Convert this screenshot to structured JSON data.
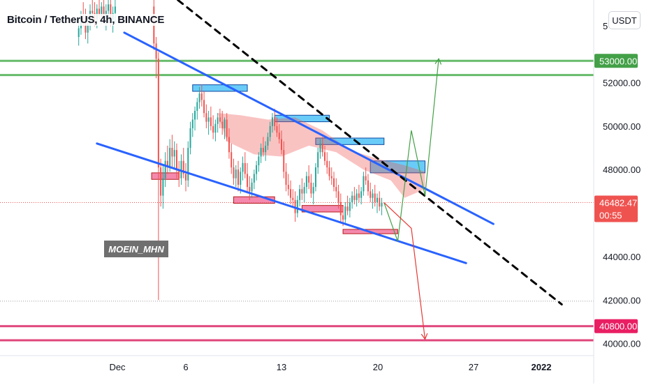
{
  "chart_data": {
    "type": "candlestick",
    "title": "Bitcoin / TetherUS, 4h, BINANCE",
    "quote_currency": "USDT",
    "y_axis": {
      "labels": [
        "52000.00",
        "50000.00",
        "48000.00",
        "44000.00",
        "42000.00",
        "40000.00"
      ],
      "partial_top_label": "5",
      "range": [
        39700,
        55800
      ]
    },
    "x_axis": {
      "labels": [
        "Dec",
        "6",
        "13",
        "20",
        "27",
        "2022"
      ],
      "range": [
        "2021-11-29",
        "2022-01-03"
      ]
    },
    "price_badges": [
      {
        "value": "53000.00",
        "color": "#43a047"
      },
      {
        "value": "46482.47",
        "countdown": "00:55",
        "color": "#ef5350"
      },
      {
        "value": "40800.00",
        "color": "#e91e63"
      }
    ],
    "current_price": 46482.47,
    "horizontal_lines": [
      {
        "price": 53000,
        "color": "#66bb6a"
      },
      {
        "price": 52350,
        "color": "#66bb6a"
      },
      {
        "price": 40800,
        "color": "#e0457b"
      },
      {
        "price": 40150,
        "color": "#e0457b"
      },
      {
        "price": 41950,
        "style": "dotted",
        "color": "#9e9e9e"
      }
    ],
    "trendlines": [
      {
        "color": "#2962ff",
        "from": {
          "date": "2021-12-01 12:00",
          "price": 54300
        },
        "to": {
          "date": "2021-12-28 12:00",
          "price": 45500
        }
      },
      {
        "color": "#2962ff",
        "from": {
          "date": "2021-11-29 12:00",
          "price": 49200
        },
        "to": {
          "date": "2021-12-26 12:00",
          "price": 43700
        }
      },
      {
        "color": "#000000",
        "style": "dashed",
        "from": {
          "date": "2021-12-05 10:00",
          "price": 55800
        },
        "to": {
          "date": "2022-01-02 12:00",
          "price": 41800
        }
      }
    ],
    "zones": [
      {
        "type": "resistance",
        "from": "2021-12-06 12:00",
        "to": "2021-12-10 12:00",
        "top": 51900,
        "bottom": 51600,
        "color": "#4fc3f7"
      },
      {
        "type": "resistance",
        "from": "2021-12-12 12:00",
        "to": "2021-12-16 12:00",
        "top": 50500,
        "bottom": 50200,
        "color": "#4fc3f7"
      },
      {
        "type": "resistance",
        "from": "2021-12-15 12:00",
        "to": "2021-12-20 12:00",
        "top": 49450,
        "bottom": 49150,
        "color": "#4fc3f7"
      },
      {
        "type": "resistance",
        "from": "2021-12-19 12:00",
        "to": "2021-12-23 12:00",
        "top": 48400,
        "bottom": 47850,
        "color": "#4fc3f7"
      },
      {
        "type": "support",
        "from": "2021-12-03 12:00",
        "to": "2021-12-05 12:00",
        "top": 47850,
        "bottom": 47550,
        "color": "#f06292"
      },
      {
        "type": "support",
        "from": "2021-12-09 12:00",
        "to": "2021-12-12 12:00",
        "top": 46750,
        "bottom": 46450,
        "color": "#f06292"
      },
      {
        "type": "support",
        "from": "2021-12-14 12:00",
        "to": "2021-12-17 12:00",
        "top": 46350,
        "bottom": 46050,
        "color": "#f06292"
      },
      {
        "type": "support",
        "from": "2021-12-17 12:00",
        "to": "2021-12-21 12:00",
        "top": 45250,
        "bottom": 45050,
        "color": "#f06292"
      }
    ],
    "scenarios": [
      {
        "color": "#43a047",
        "path": [
          [
            "2021-12-20 12:00",
            46480
          ],
          [
            "2021-12-21 12:00",
            44700
          ],
          [
            "2021-12-22 12:00",
            49800
          ],
          [
            "2021-12-23 12:00",
            46800
          ],
          [
            "2021-12-24 12:00",
            53100
          ]
        ]
      },
      {
        "color": "#e53935",
        "path": [
          [
            "2021-12-20 12:00",
            46480
          ],
          [
            "2021-12-22 12:00",
            45300
          ],
          [
            "2021-12-23 12:00",
            40200
          ]
        ]
      }
    ],
    "candles": [
      [
        "2021-11-28 04:00",
        54100,
        54900,
        53700,
        54500
      ],
      [
        "2021-11-28 08:00",
        54500,
        55300,
        54200,
        55000
      ],
      [
        "2021-11-28 12:00",
        55000,
        55700,
        54600,
        54800
      ],
      [
        "2021-11-28 16:00",
        54800,
        55400,
        54000,
        54300
      ],
      [
        "2021-11-28 20:00",
        54300,
        55000,
        53800,
        54700
      ],
      [
        "2021-11-29 00:00",
        54700,
        55600,
        54400,
        55300
      ],
      [
        "2021-11-29 04:00",
        55300,
        55800,
        54800,
        55200
      ],
      [
        "2021-11-29 08:00",
        55200,
        55700,
        54600,
        54900
      ],
      [
        "2021-11-29 12:00",
        54900,
        55600,
        54500,
        55400
      ],
      [
        "2021-11-29 16:00",
        55400,
        55800,
        54900,
        55100
      ],
      [
        "2021-11-29 20:00",
        55100,
        55700,
        54700,
        55500
      ],
      [
        "2021-11-30 00:00",
        55500,
        55800,
        54800,
        55000
      ],
      [
        "2021-11-30 04:00",
        55000,
        55600,
        54400,
        55300
      ],
      [
        "2021-11-30 08:00",
        55300,
        55800,
        55000,
        55600
      ],
      [
        "2021-11-30 12:00",
        55600,
        55800,
        54600,
        54900
      ],
      [
        "2021-11-30 16:00",
        54900,
        55500,
        54300,
        55200
      ],
      [
        "2021-11-30 20:00",
        55200,
        55800,
        54700,
        55500
      ],
      [
        "2021-12-03 16:00",
        55500,
        55800,
        53500,
        53800
      ],
      [
        "2021-12-03 20:00",
        53800,
        54100,
        52200,
        53100
      ],
      [
        "2021-12-04 00:00",
        53100,
        53400,
        42000,
        48100
      ],
      [
        "2021-12-04 04:00",
        48100,
        48500,
        46300,
        46800
      ],
      [
        "2021-12-04 08:00",
        46800,
        48200,
        46200,
        47600
      ],
      [
        "2021-12-04 12:00",
        47600,
        48800,
        47200,
        48400
      ],
      [
        "2021-12-04 16:00",
        48400,
        49100,
        47800,
        48100
      ],
      [
        "2021-12-04 20:00",
        48100,
        49400,
        47900,
        49000
      ],
      [
        "2021-12-05 00:00",
        49000,
        49600,
        48100,
        48600
      ],
      [
        "2021-12-05 04:00",
        48600,
        49300,
        48000,
        48900
      ],
      [
        "2021-12-05 08:00",
        48900,
        49200,
        47600,
        48000
      ],
      [
        "2021-12-05 12:00",
        48000,
        48400,
        47200,
        47600
      ],
      [
        "2021-12-05 16:00",
        47600,
        48700,
        47300,
        48400
      ],
      [
        "2021-12-05 20:00",
        48400,
        49000,
        47600,
        47800
      ],
      [
        "2021-12-06 00:00",
        47800,
        48300,
        47000,
        47500
      ],
      [
        "2021-12-06 04:00",
        47500,
        49300,
        47200,
        49000
      ],
      [
        "2021-12-06 08:00",
        49000,
        50200,
        48700,
        49900
      ],
      [
        "2021-12-06 12:00",
        49900,
        50600,
        49500,
        50300
      ],
      [
        "2021-12-06 16:00",
        50300,
        50900,
        49800,
        50700
      ],
      [
        "2021-12-06 20:00",
        50700,
        51300,
        50300,
        51100
      ],
      [
        "2021-12-07 00:00",
        51100,
        51800,
        50800,
        51500
      ],
      [
        "2021-12-07 04:00",
        51500,
        51900,
        50900,
        51200
      ],
      [
        "2021-12-07 08:00",
        51200,
        51600,
        50400,
        50600
      ],
      [
        "2021-12-07 12:00",
        50600,
        51000,
        49900,
        50200
      ],
      [
        "2021-12-07 16:00",
        50200,
        50700,
        49600,
        50400
      ],
      [
        "2021-12-07 20:00",
        50400,
        50900,
        49800,
        50000
      ],
      [
        "2021-12-08 00:00",
        50000,
        50500,
        49400,
        49700
      ],
      [
        "2021-12-08 04:00",
        49700,
        50300,
        49300,
        50100
      ],
      [
        "2021-12-08 08:00",
        50100,
        50600,
        49700,
        50400
      ],
      [
        "2021-12-08 12:00",
        50400,
        50800,
        49900,
        50200
      ],
      [
        "2021-12-08 16:00",
        50200,
        50700,
        49600,
        49900
      ],
      [
        "2021-12-08 20:00",
        49900,
        50400,
        49400,
        50300
      ],
      [
        "2021-12-09 00:00",
        50300,
        50600,
        49300,
        49500
      ],
      [
        "2021-12-09 04:00",
        49500,
        49900,
        48500,
        48800
      ],
      [
        "2021-12-09 08:00",
        48800,
        49200,
        47800,
        48100
      ],
      [
        "2021-12-09 12:00",
        48100,
        48500,
        47300,
        47600
      ],
      [
        "2021-12-09 16:00",
        47600,
        48200,
        47200,
        48000
      ],
      [
        "2021-12-09 20:00",
        48000,
        48400,
        47000,
        47300
      ],
      [
        "2021-12-10 00:00",
        47300,
        48100,
        46900,
        47900
      ],
      [
        "2021-12-10 04:00",
        47900,
        48600,
        47500,
        48300
      ],
      [
        "2021-12-10 08:00",
        48300,
        48800,
        47600,
        47800
      ],
      [
        "2021-12-10 12:00",
        47800,
        48300,
        46900,
        47200
      ],
      [
        "2021-12-10 16:00",
        47200,
        47700,
        46600,
        47000
      ],
      [
        "2021-12-10 20:00",
        47000,
        47600,
        46700,
        47400
      ],
      [
        "2021-12-11 00:00",
        47400,
        48000,
        47100,
        47800
      ],
      [
        "2021-12-11 04:00",
        47800,
        48400,
        47500,
        48200
      ],
      [
        "2021-12-11 08:00",
        48200,
        48800,
        47900,
        48600
      ],
      [
        "2021-12-11 12:00",
        48600,
        49200,
        48300,
        49000
      ],
      [
        "2021-12-11 16:00",
        49000,
        49500,
        48600,
        48800
      ],
      [
        "2021-12-11 20:00",
        48800,
        49300,
        48400,
        49100
      ],
      [
        "2021-12-12 00:00",
        49100,
        49700,
        48900,
        49500
      ],
      [
        "2021-12-12 04:00",
        49500,
        50200,
        49300,
        50000
      ],
      [
        "2021-12-12 08:00",
        50000,
        50600,
        49700,
        50400
      ],
      [
        "2021-12-12 12:00",
        50400,
        50800,
        49800,
        50000
      ],
      [
        "2021-12-12 16:00",
        50000,
        50400,
        49500,
        49700
      ],
      [
        "2021-12-12 20:00",
        49700,
        50100,
        49200,
        49400
      ],
      [
        "2021-12-13 00:00",
        49400,
        49800,
        48700,
        48900
      ],
      [
        "2021-12-13 04:00",
        48900,
        49300,
        47600,
        47900
      ],
      [
        "2021-12-13 08:00",
        47900,
        48300,
        47000,
        47300
      ],
      [
        "2021-12-13 12:00",
        47300,
        47800,
        46800,
        47100
      ],
      [
        "2021-12-13 16:00",
        47100,
        47500,
        46400,
        46700
      ],
      [
        "2021-12-13 20:00",
        46700,
        47100,
        46300,
        46600
      ],
      [
        "2021-12-14 00:00",
        46600,
        47000,
        45600,
        46000
      ],
      [
        "2021-12-14 04:00",
        46000,
        46800,
        45800,
        46600
      ],
      [
        "2021-12-14 08:00",
        46600,
        47300,
        46300,
        47100
      ],
      [
        "2021-12-14 12:00",
        47100,
        47600,
        46600,
        46900
      ],
      [
        "2021-12-14 16:00",
        46900,
        47400,
        46500,
        47200
      ],
      [
        "2021-12-14 20:00",
        47200,
        47900,
        46900,
        47700
      ],
      [
        "2021-12-15 00:00",
        47700,
        48200,
        47100,
        47400
      ],
      [
        "2021-12-15 04:00",
        47400,
        47800,
        46700,
        46900
      ],
      [
        "2021-12-15 08:00",
        46900,
        47400,
        46400,
        47200
      ],
      [
        "2021-12-15 12:00",
        47200,
        48300,
        47000,
        48100
      ],
      [
        "2021-12-15 16:00",
        48100,
        49000,
        47800,
        48800
      ],
      [
        "2021-12-15 20:00",
        48800,
        49400,
        48500,
        49200
      ],
      [
        "2021-12-16 00:00",
        49200,
        49500,
        48600,
        48800
      ],
      [
        "2021-12-16 04:00",
        48800,
        49100,
        48200,
        48400
      ],
      [
        "2021-12-16 08:00",
        48400,
        48800,
        47800,
        48100
      ],
      [
        "2021-12-16 12:00",
        48100,
        48400,
        47500,
        47700
      ],
      [
        "2021-12-16 16:00",
        47700,
        48100,
        47300,
        47600
      ],
      [
        "2021-12-16 20:00",
        47600,
        47900,
        47000,
        47200
      ],
      [
        "2021-12-17 00:00",
        47200,
        47600,
        46700,
        47000
      ],
      [
        "2021-12-17 04:00",
        47000,
        47300,
        46200,
        46500
      ],
      [
        "2021-12-17 08:00",
        46500,
        46900,
        45600,
        45900
      ],
      [
        "2021-12-17 12:00",
        45900,
        46300,
        45400,
        45700
      ],
      [
        "2021-12-17 16:00",
        45700,
        46500,
        45500,
        46300
      ],
      [
        "2021-12-17 20:00",
        46300,
        46800,
        45900,
        46100
      ],
      [
        "2021-12-18 00:00",
        46100,
        46700,
        45800,
        46500
      ],
      [
        "2021-12-18 04:00",
        46500,
        47000,
        46200,
        46800
      ],
      [
        "2021-12-18 08:00",
        46800,
        47200,
        46400,
        46600
      ],
      [
        "2021-12-18 12:00",
        46600,
        47100,
        46300,
        46900
      ],
      [
        "2021-12-18 16:00",
        46900,
        47300,
        46500,
        46700
      ],
      [
        "2021-12-18 20:00",
        46700,
        47200,
        46400,
        47000
      ],
      [
        "2021-12-19 00:00",
        47000,
        47900,
        46800,
        47700
      ],
      [
        "2021-12-19 04:00",
        47700,
        48100,
        47300,
        47500
      ],
      [
        "2021-12-19 08:00",
        47500,
        47800,
        46800,
        47000
      ],
      [
        "2021-12-19 12:00",
        47000,
        47400,
        46500,
        46700
      ],
      [
        "2021-12-19 16:00",
        46700,
        47100,
        46200,
        46900
      ],
      [
        "2021-12-19 20:00",
        46900,
        47300,
        46300,
        46500
      ],
      [
        "2021-12-20 00:00",
        46500,
        46900,
        46000,
        46700
      ],
      [
        "2021-12-20 04:00",
        46700,
        47000,
        46100,
        46300
      ],
      [
        "2021-12-20 08:00",
        46300,
        46700,
        45900,
        46482
      ]
    ]
  }
}
